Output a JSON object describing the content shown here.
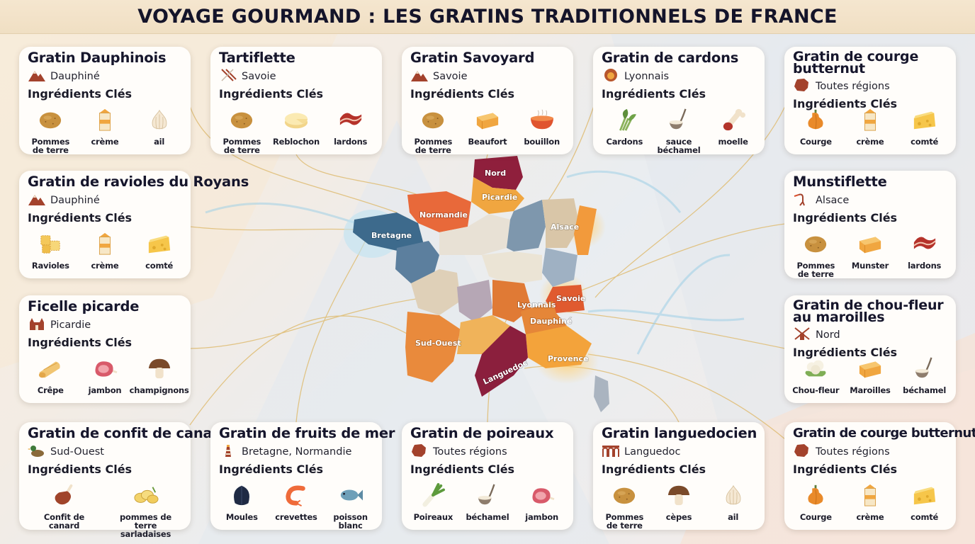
{
  "title": "VOYAGE GOURMAND : LES GRATINS TRADITIONNELS DE FRANCE",
  "ing_heading": "Ingrédients Clés",
  "colors": {
    "accent_brown": "#8a3f2a",
    "title_band": "#f2e2c8",
    "card_bg": "#fffdfa",
    "connector": "#e0bf7a"
  },
  "cards": [
    {
      "name": "Gratin Dauphinois",
      "region": "Dauphiné",
      "region_icon": "mountain-icon",
      "ingredients": [
        {
          "label": "Pommes de terre",
          "icon": "potato-icon"
        },
        {
          "label": "crème",
          "icon": "cream-carton-icon"
        },
        {
          "label": "ail",
          "icon": "garlic-icon"
        }
      ]
    },
    {
      "name": "Tartiflette",
      "region": "Savoie",
      "region_icon": "skis-icon",
      "ingredients": [
        {
          "label": "Pommes de terre",
          "icon": "potato-icon"
        },
        {
          "label": "Reblochon",
          "icon": "round-cheese-icon"
        },
        {
          "label": "lardons",
          "icon": "bacon-icon"
        }
      ]
    },
    {
      "name": "Gratin Savoyard",
      "region": "Savoie",
      "region_icon": "mountain-icon",
      "ingredients": [
        {
          "label": "Pommes de terre",
          "icon": "potato-icon"
        },
        {
          "label": "Beaufort",
          "icon": "wheel-cheese-icon"
        },
        {
          "label": "bouillon",
          "icon": "soup-bowl-icon"
        }
      ]
    },
    {
      "name": "Gratin de cardons",
      "region": "Lyonnais",
      "region_icon": "lion-icon",
      "ingredients": [
        {
          "label": "Cardons",
          "icon": "cardoon-icon"
        },
        {
          "label": "sauce béchamel",
          "icon": "ladle-icon"
        },
        {
          "label": "moelle",
          "icon": "marrow-bone-icon"
        }
      ]
    },
    {
      "name": "Gratin de courge butternut",
      "region": "Toutes régions",
      "region_icon": "france-map-icon",
      "ingredients": [
        {
          "label": "Courge",
          "icon": "squash-icon"
        },
        {
          "label": "crème",
          "icon": "cream-carton-icon"
        },
        {
          "label": "comté",
          "icon": "cheese-wedge-icon"
        }
      ]
    },
    {
      "name": "Gratin de ravioles du Royans",
      "region": "Dauphiné",
      "region_icon": "mountain-icon",
      "ingredients": [
        {
          "label": "Ravioles",
          "icon": "ravioli-icon"
        },
        {
          "label": "crème",
          "icon": "cream-carton-icon"
        },
        {
          "label": "comté",
          "icon": "cheese-wedge-icon"
        }
      ]
    },
    {
      "name": "Munstiflette",
      "region": "Alsace",
      "region_icon": "stork-icon",
      "ingredients": [
        {
          "label": "Pommes de terre",
          "icon": "potato-icon"
        },
        {
          "label": "Munster",
          "icon": "wheel-cheese-icon"
        },
        {
          "label": "lardons",
          "icon": "bacon-icon"
        }
      ]
    },
    {
      "name": "Ficelle picarde",
      "region": "Picardie",
      "region_icon": "cathedral-icon",
      "ingredients": [
        {
          "label": "Crêpe",
          "icon": "crepe-roll-icon"
        },
        {
          "label": "jambon",
          "icon": "ham-icon"
        },
        {
          "label": "champignons",
          "icon": "mushroom-icon"
        }
      ]
    },
    {
      "name": "Gratin de chou-fleur au maroilles",
      "region": "Nord",
      "region_icon": "windmill-icon",
      "ingredients": [
        {
          "label": "Chou-fleur",
          "icon": "cauliflower-icon"
        },
        {
          "label": "Maroilles",
          "icon": "wheel-cheese-icon"
        },
        {
          "label": "béchamel",
          "icon": "ladle-icon"
        }
      ]
    },
    {
      "name": "Gratin de confit de canard",
      "region": "Sud-Ouest",
      "region_icon": "duck-icon",
      "ingredients": [
        {
          "label": "Confit de canard",
          "icon": "duck-leg-icon"
        },
        {
          "label": "pommes de terre sarladaises",
          "icon": "sliced-potatoes-icon"
        }
      ]
    },
    {
      "name": "Gratin de fruits de mer",
      "region": "Bretagne, Normandie",
      "region_icon": "lighthouse-icon",
      "ingredients": [
        {
          "label": "Moules",
          "icon": "mussel-icon"
        },
        {
          "label": "crevettes",
          "icon": "shrimp-icon"
        },
        {
          "label": "poisson blanc",
          "icon": "fish-icon"
        }
      ]
    },
    {
      "name": "Gratin de poireaux",
      "region": "Toutes régions",
      "region_icon": "france-map-icon",
      "ingredients": [
        {
          "label": "Poireaux",
          "icon": "leek-icon"
        },
        {
          "label": "béchamel",
          "icon": "ladle-icon"
        },
        {
          "label": "jambon",
          "icon": "ham-icon"
        }
      ]
    },
    {
      "name": "Gratin languedocien",
      "region": "Languedoc",
      "region_icon": "aqueduct-icon",
      "ingredients": [
        {
          "label": "Pommes de terre",
          "icon": "potato-icon"
        },
        {
          "label": "cèpes",
          "icon": "mushroom-icon"
        },
        {
          "label": "ail",
          "icon": "garlic-icon"
        }
      ]
    },
    {
      "name": "Gratin de courge butternut",
      "region": "Toutes régions",
      "region_icon": "france-map-icon",
      "ingredients": [
        {
          "label": "Courge",
          "icon": "squash-icon"
        },
        {
          "label": "crème",
          "icon": "cream-carton-icon"
        },
        {
          "label": "comté",
          "icon": "cheese-wedge-icon"
        }
      ]
    }
  ],
  "map": {
    "regions": [
      {
        "label": "Nord",
        "color": "#8f1f3c"
      },
      {
        "label": "Picardie",
        "color": "#f0a640"
      },
      {
        "label": "Normandie",
        "color": "#e8693a"
      },
      {
        "label": "Bretagne",
        "color": "#3d6a8c"
      },
      {
        "label": "Alsace",
        "color": "#f29a3c"
      },
      {
        "label": "Lyonnais",
        "color": "#e07a35"
      },
      {
        "label": "Savoie",
        "color": "#e05a2f"
      },
      {
        "label": "Dauphiné",
        "color": "#e58638"
      },
      {
        "label": "Sud-Ouest",
        "color": "#e98a3c"
      },
      {
        "label": "Provence",
        "color": "#f3a33b"
      },
      {
        "label": "Languedoc",
        "color": "#8b1f3d"
      }
    ]
  }
}
